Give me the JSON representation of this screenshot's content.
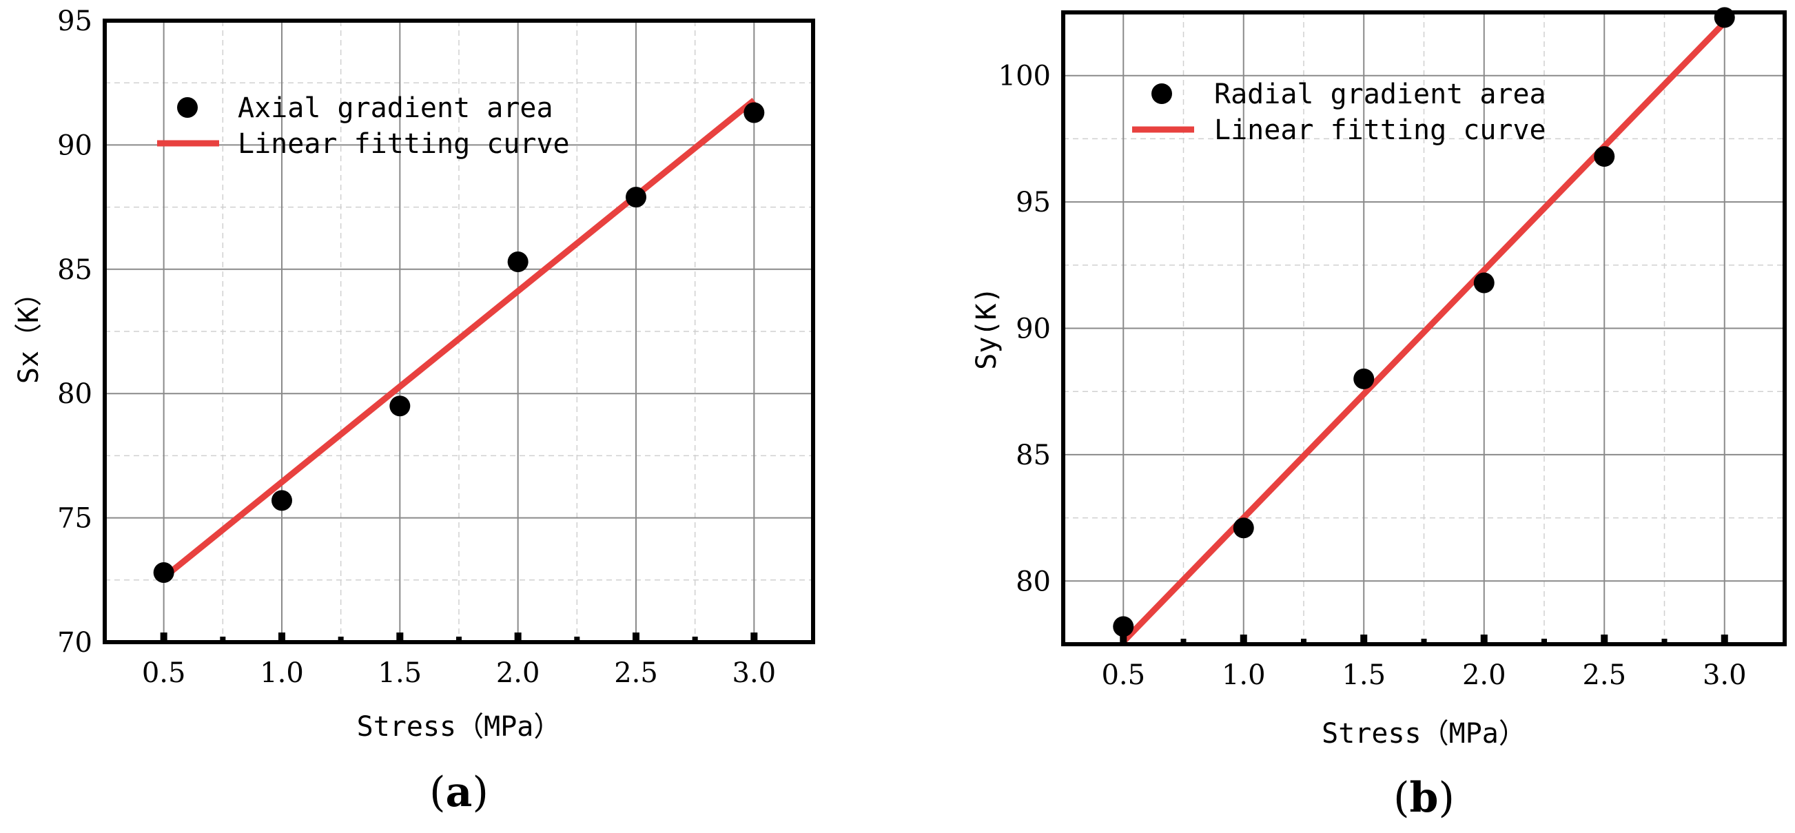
{
  "chart_data": [
    {
      "type": "scatter",
      "panel_label": "(a)",
      "panel_letter": "a",
      "title": "",
      "xlabel": "Stress（MPa）",
      "ylabel": "Sx（K）",
      "xlim": [
        0.25,
        3.25
      ],
      "ylim": [
        70,
        95
      ],
      "x_ticks": [
        0.5,
        1.0,
        1.5,
        2.0,
        2.5,
        3.0
      ],
      "x_tick_labels": [
        "0.5",
        "1.0",
        "1.5",
        "2.0",
        "2.5",
        "3.0"
      ],
      "y_ticks": [
        70,
        75,
        80,
        85,
        90,
        95
      ],
      "y_tick_labels": [
        "70",
        "75",
        "80",
        "85",
        "90",
        "95"
      ],
      "grid": true,
      "legend_position": "top-left",
      "series": [
        {
          "name": "Axial gradient area",
          "kind": "scatter",
          "color": "#000000",
          "x": [
            0.5,
            1.0,
            1.5,
            2.0,
            2.5,
            3.0
          ],
          "y": [
            72.8,
            75.7,
            79.5,
            85.3,
            87.9,
            91.3
          ]
        },
        {
          "name": "Linear fitting curve",
          "kind": "line",
          "color": "#e8413f",
          "x": [
            0.5,
            3.0
          ],
          "y": [
            72.6,
            91.8
          ]
        }
      ]
    },
    {
      "type": "scatter",
      "panel_label": "(b)",
      "panel_letter": "b",
      "title": "",
      "xlabel": "Stress（MPa）",
      "ylabel": "Sy(K)",
      "xlim": [
        0.25,
        3.25
      ],
      "ylim": [
        77.5,
        102.5
      ],
      "x_ticks": [
        0.5,
        1.0,
        1.5,
        2.0,
        2.5,
        3.0
      ],
      "x_tick_labels": [
        "0.5",
        "1.0",
        "1.5",
        "2.0",
        "2.5",
        "3.0"
      ],
      "y_ticks": [
        80,
        85,
        90,
        95,
        100
      ],
      "y_tick_labels": [
        "80",
        "85",
        "90",
        "95",
        "100"
      ],
      "grid": true,
      "legend_position": "top-left",
      "series": [
        {
          "name": "Radial gradient area",
          "kind": "scatter",
          "color": "#000000",
          "x": [
            0.5,
            1.0,
            1.5,
            2.0,
            2.5,
            3.0
          ],
          "y": [
            78.2,
            82.1,
            88.0,
            91.8,
            96.8,
            102.3
          ]
        },
        {
          "name": "Linear fitting curve",
          "kind": "line",
          "color": "#e8413f",
          "x": [
            0.5,
            3.0
          ],
          "y": [
            77.6,
            102.1
          ]
        }
      ]
    }
  ]
}
